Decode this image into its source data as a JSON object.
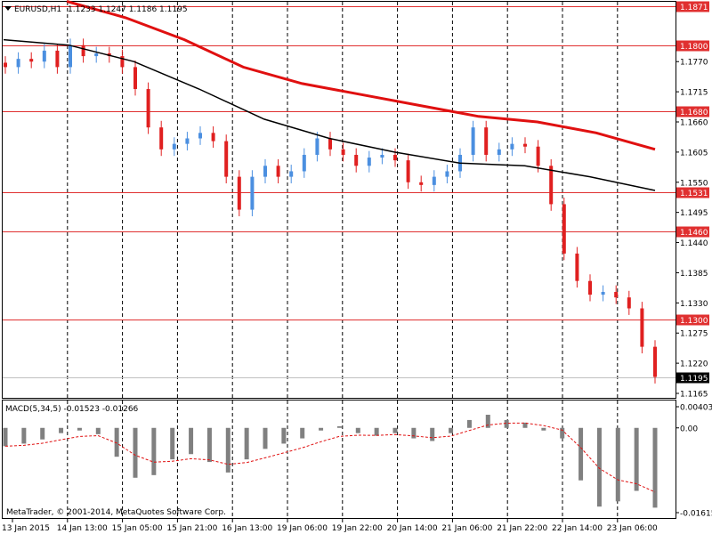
{
  "header": {
    "symbol": "EURUSD,H1",
    "ohlc": "1.1233 1.1247 1.1186 1.1195"
  },
  "indicator": {
    "label": "MACD(5,34,5) -0.01523 -0.01266"
  },
  "copyright": "MetaTrader, © 2001-2014, MetaQuotes Software Corp.",
  "colors": {
    "background": "#ffffff",
    "bull_candle": "#4b8fe0",
    "bear_candle": "#e02020",
    "ma_slow": "#e01010",
    "ma_fast": "#000000",
    "level_line": "#e03030",
    "macd_hist": "#808080",
    "macd_signal": "#e01010",
    "grid": "#000000"
  },
  "chart_data": {
    "type": "candlestick",
    "price_axis": {
      "range": [
        1.116,
        1.188
      ],
      "ticks": [
        "1.1770",
        "1.1715",
        "1.1660",
        "1.1605",
        "1.1550",
        "1.1495",
        "1.1440",
        "1.1385",
        "1.1330",
        "1.1275",
        "1.1220",
        "1.1165"
      ]
    },
    "levels": [
      {
        "label": "1.1871",
        "value": 1.1871
      },
      {
        "label": "1.1800",
        "value": 1.18
      },
      {
        "label": "1.1680",
        "value": 1.168
      },
      {
        "label": "1.1531",
        "value": 1.1531
      },
      {
        "label": "1.1460",
        "value": 1.146
      },
      {
        "label": "1.1300",
        "value": 1.13
      }
    ],
    "current_price": {
      "label": "1.1195",
      "value": 1.1195
    },
    "x_labels": [
      "13 Jan 2015",
      "14 Jan 13:00",
      "15 Jan 05:00",
      "15 Jan 21:00",
      "16 Jan 13:00",
      "19 Jan 06:00",
      "19 Jan 22:00",
      "20 Jan 14:00",
      "21 Jan 06:00",
      "21 Jan 22:00",
      "22 Jan 14:00",
      "23 Jan 06:00"
    ],
    "ma_slow": [
      1.188,
      1.185,
      1.181,
      1.176,
      1.173,
      1.171,
      1.169,
      1.167,
      1.166,
      1.164,
      1.161
    ],
    "ma_fast": [
      1.181,
      1.18,
      1.177,
      1.172,
      1.1665,
      1.163,
      1.1605,
      1.1585,
      1.158,
      1.156,
      1.1535
    ],
    "close": [
      1.176,
      1.1775,
      1.177,
      1.179,
      1.176,
      1.18,
      1.178,
      1.1785,
      1.178,
      1.176,
      1.172,
      1.165,
      1.161,
      1.162,
      1.163,
      1.164,
      1.1625,
      1.156,
      1.15,
      1.156,
      1.158,
      1.156,
      1.157,
      1.16,
      1.163,
      1.161,
      1.16,
      1.158,
      1.1595,
      1.16,
      1.159,
      1.155,
      1.1545,
      1.156,
      1.157,
      1.16,
      1.165,
      1.16,
      1.161,
      1.162,
      1.1615,
      1.158,
      1.151,
      1.142,
      1.137,
      1.1345,
      1.135,
      1.134,
      1.132,
      1.125,
      1.1195
    ],
    "macd_axis": {
      "range": [
        -0.01615,
        0.00403
      ],
      "ticks": [
        "0.00403",
        "0.00",
        "-0.01615"
      ]
    },
    "macd_hist": [
      -0.0035,
      -0.003,
      -0.0022,
      -0.001,
      -0.0005,
      -0.0012,
      -0.0055,
      -0.0095,
      -0.009,
      -0.006,
      -0.005,
      -0.0065,
      -0.0085,
      -0.006,
      -0.004,
      -0.003,
      -0.002,
      -0.0005,
      0.0003,
      -0.001,
      -0.0015,
      -0.001,
      -0.002,
      -0.0025,
      -0.001,
      0.0015,
      0.0025,
      0.0015,
      0.001,
      -0.0005,
      -0.002,
      -0.01,
      -0.015,
      -0.014,
      -0.012,
      -0.0152
    ]
  }
}
